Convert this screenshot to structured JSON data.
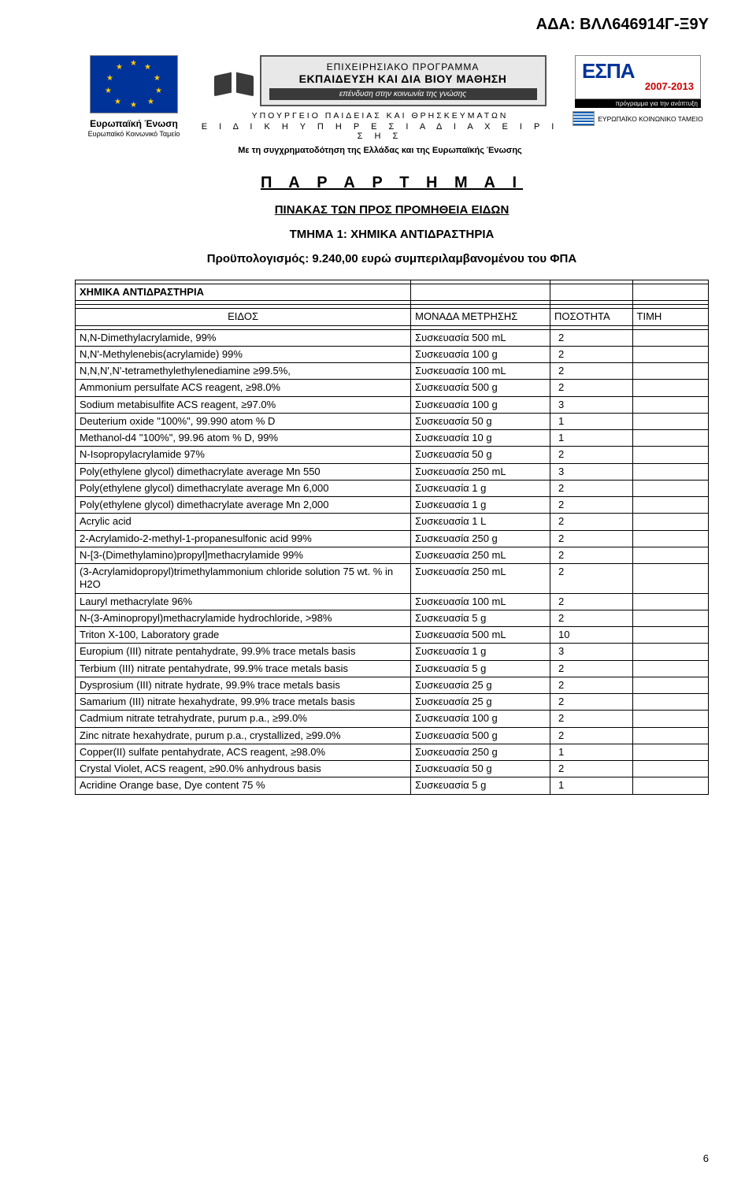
{
  "ada": "ΑΔΑ: ΒΛΛ646914Γ-Ξ9Υ",
  "eu": {
    "l1": "Ευρωπαϊκή Ένωση",
    "l2": "Ευρωπαϊκό Κοινωνικό Ταμείο"
  },
  "prog": {
    "l1": "ΕΠΙΧΕΙΡΗΣΙΑΚΟ ΠΡΟΓΡΑΜΜΑ",
    "l2": "ΕΚΠΑΙΔΕΥΣΗ ΚΑΙ ΔΙΑ ΒΙΟΥ ΜΑΘΗΣΗ",
    "strip": "επένδυση στην κοινωνία της γνώσης",
    "min": "ΥΠΟΥΡΓΕΙΟ ΠΑΙΔΕΙΑΣ ΚΑΙ ΘΡΗΣΚΕΥΜΑΤΩΝ",
    "svc": "Ε Ι Δ Ι Κ Η   Υ Π Η Ρ Ε Σ Ι Α   Δ Ι Α Χ Ε Ι Ρ Ι Σ Η Σ",
    "cofund": "Με τη συγχρηματοδότηση της Ελλάδας και της Ευρωπαϊκής Ένωσης"
  },
  "espa": {
    "main": "ΕΣΠΑ",
    "yr": "2007-2013",
    "strip": "πρόγραμμα για την ανάπτυξη",
    "sub": "ΕΥΡΩΠΑΪΚΟ ΚΟΙΝΩΝΙΚΟ ΤΑΜΕΙΟ"
  },
  "title": "Π Α Ρ Α Ρ Τ Η Μ Α  Ι",
  "sub1": "ΠΙΝΑΚΑΣ ΤΩΝ ΠΡΟΣ ΠΡΟΜΗΘΕΙΑ ΕΙΔΩΝ",
  "sub2": "ΤΜΗΜΑ 1: ΧΗΜΙΚΑ ΑΝΤΙΔΡΑΣΤΗΡΙΑ",
  "sub3": "Προϋπολογισμός: 9.240,00 ευρώ συμπεριλαμβανομένου του ΦΠΑ",
  "section": "ΧΗΜΙΚΑ ΑΝΤΙΔΡΑΣΤΗΡΙΑ",
  "hdr": {
    "c1": "ΕΙΔΟΣ",
    "c2": "ΜΟΝΑΔΑ ΜΕΤΡΗΣΗΣ",
    "c3": "ΠΟΣΟΤΗΤΑ",
    "c4": "ΤΙΜΗ"
  },
  "rows": [
    {
      "n": "N,N-Dimethylacrylamide, 99%",
      "u": "Συσκευασία 500 mL",
      "q": "2"
    },
    {
      "n": "N,N'-Methylenebis(acrylamide) 99%",
      "u": "Συσκευασία 100 g",
      "q": "2"
    },
    {
      "n": "N,N,N',N'-tetramethylethylenediamine ≥99.5%,",
      "u": "Συσκευασία 100 mL",
      "q": "2"
    },
    {
      "n": "Ammonium persulfate ACS reagent, ≥98.0%",
      "u": "Συσκευασία 500 g",
      "q": "2"
    },
    {
      "n": "Sodium metabisulfite ACS reagent, ≥97.0%",
      "u": "Συσκευασία 100 g",
      "q": "3"
    },
    {
      "n": "Deuterium oxide \"100%\", 99.990 atom % D",
      "u": "Συσκευασία 50 g",
      "q": "1"
    },
    {
      "n": "Methanol-d4 \"100%\", 99.96 atom % D, 99%",
      "u": "Συσκευασία 10 g",
      "q": "1"
    },
    {
      "n": "N-Isopropylacrylamide 97%",
      "u": "Συσκευασία 50 g",
      "q": "2"
    },
    {
      "n": "Poly(ethylene glycol) dimethacrylate average Mn 550",
      "u": "Συσκευασία 250 mL",
      "q": "3"
    },
    {
      "n": "Poly(ethylene glycol) dimethacrylate average Mn 6,000",
      "u": "Συσκευασία 1 g",
      "q": "2"
    },
    {
      "n": "Poly(ethylene glycol) dimethacrylate average Mn 2,000",
      "u": "Συσκευασία 1 g",
      "q": "2"
    },
    {
      "n": "Acrylic acid",
      "u": "Συσκευασία 1 L",
      "q": "2"
    },
    {
      "n": "2-Acrylamido-2-methyl-1-propanesulfonic acid 99%",
      "u": "Συσκευασία 250 g",
      "q": "2"
    },
    {
      "n": "N-[3-(Dimethylamino)propyl]methacrylamide 99%",
      "u": "Συσκευασία 250 mL",
      "q": "2"
    },
    {
      "n": "(3-Acrylamidopropyl)trimethylammonium chloride solution 75 wt. % in H2O",
      "u": "Συσκευασία 250 mL",
      "q": "2"
    },
    {
      "n": "Lauryl methacrylate 96%",
      "u": "Συσκευασία 100 mL",
      "q": "2"
    },
    {
      "n": "N-(3-Aminopropyl)methacrylamide hydrochloride, >98%",
      "u": "Συσκευασία 5 g",
      "q": "2"
    },
    {
      "n": "Triton X-100, Laboratory grade",
      "u": "Συσκευασία 500 mL",
      "q": "10"
    },
    {
      "n": "Europium (III) nitrate pentahydrate, 99.9% trace metals basis",
      "u": "Συσκευασία 1 g",
      "q": "3"
    },
    {
      "n": "Terbium (III) nitrate pentahydrate, 99.9% trace metals basis",
      "u": "Συσκευασία 5 g",
      "q": "2"
    },
    {
      "n": "Dysprosium (III) nitrate hydrate, 99.9% trace metals basis",
      "u": "Συσκευασία 25 g",
      "q": "2"
    },
    {
      "n": "Samarium (III) nitrate hexahydrate, 99.9% trace metals basis",
      "u": "Συσκευασία 25 g",
      "q": "2"
    },
    {
      "n": "Cadmium nitrate tetrahydrate, purum p.a., ≥99.0%",
      "u": "Συσκευασία 100 g",
      "q": "2"
    },
    {
      "n": "Zinc nitrate hexahydrate, purum p.a., crystallized, ≥99.0%",
      "u": "Συσκευασία 500 g",
      "q": "2"
    },
    {
      "n": "Copper(II) sulfate pentahydrate, ACS reagent, ≥98.0%",
      "u": "Συσκευασία 250 g",
      "q": "1"
    },
    {
      "n": "Crystal Violet, ACS reagent, ≥90.0% anhydrous basis",
      "u": "Συσκευασία 50 g",
      "q": "2"
    },
    {
      "n": "Acridine Orange base, Dye content 75 %",
      "u": "Συσκευασία 5 g",
      "q": "1"
    }
  ],
  "pagenum": "6"
}
